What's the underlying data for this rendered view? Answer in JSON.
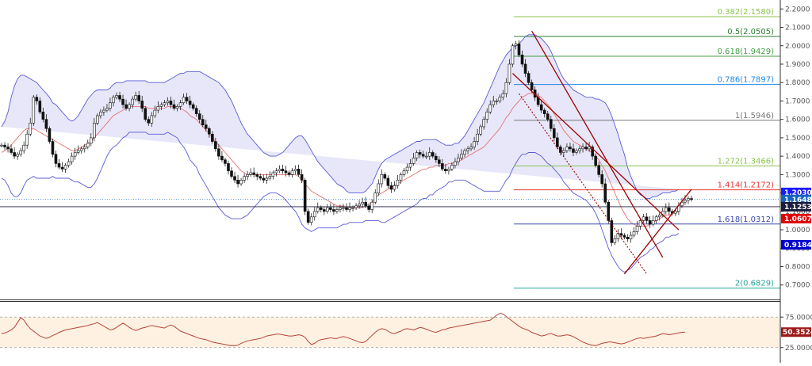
{
  "chart_data": {
    "type": "candlestick",
    "main": {
      "ylim": [
        0.63,
        2.24
      ],
      "y_ticks": [
        "2.2000",
        "2.1000",
        "2.0000",
        "1.9000",
        "1.8000",
        "1.7000",
        "1.6000",
        "1.5000",
        "1.4000",
        "1.3000",
        "1.2000",
        "1.1000",
        "1.0000",
        "0.9000",
        "0.8000",
        "0.7000"
      ],
      "grid": false,
      "fib_levels": [
        {
          "label": "0.382(2.1580)",
          "value": 2.158,
          "color": "#8bc34a"
        },
        {
          "label": "0.5(2.0505)",
          "value": 2.0505,
          "color": "#2e7d32"
        },
        {
          "label": "0.618(1.9429)",
          "value": 1.9429,
          "color": "#43a047"
        },
        {
          "label": "0.786(1.7897)",
          "value": 1.7897,
          "color": "#1e88e5"
        },
        {
          "label": "1(1.5946)",
          "value": 1.5946,
          "color": "#777777"
        },
        {
          "label": "1.272(1.3466)",
          "value": 1.3466,
          "color": "#8bc34a"
        },
        {
          "label": "1.414(1.2172)",
          "value": 1.2172,
          "color": "#e53935"
        },
        {
          "label": "1.618(1.0312)",
          "value": 1.0312,
          "color": "#3949ab"
        },
        {
          "label": "2(0.6829)",
          "value": 0.6829,
          "color": "#26a69a"
        }
      ],
      "price_tags": [
        {
          "label": "1.2030",
          "value": 1.203,
          "color": "#1a1aff"
        },
        {
          "label": "1.1648",
          "value": 1.1648,
          "color": "#1565c0"
        },
        {
          "label": "1.1253",
          "value": 1.1253,
          "color": "#1c1c3c"
        },
        {
          "label": "1.0607",
          "value": 1.0607,
          "color": "#e00000"
        },
        {
          "label": "0.9184",
          "value": 0.9184,
          "color": "#0000d0"
        }
      ],
      "horizontal_lines": [
        {
          "value": 1.1648,
          "color": "#1565c0",
          "style": "dotted"
        },
        {
          "value": 1.1253,
          "color": "#1c1c3c",
          "style": "solid"
        }
      ],
      "trend_lines": [
        {
          "x1": 166,
          "y1": 2.08,
          "x2": 207,
          "y2": 0.85,
          "color": "#9e0000",
          "style": "solid"
        },
        {
          "x1": 160,
          "y1": 1.85,
          "x2": 212,
          "y2": 1.0,
          "color": "#9e0000",
          "style": "solid"
        },
        {
          "x1": 162,
          "y1": 1.74,
          "x2": 202,
          "y2": 0.76,
          "color": "#9e0000",
          "style": "dotted"
        },
        {
          "x1": 195,
          "y1": 0.76,
          "x2": 216,
          "y2": 1.22,
          "color": "#9e0000",
          "style": "solid"
        }
      ],
      "x_count": 217,
      "close": [
        1.46,
        1.45,
        1.44,
        1.42,
        1.4,
        1.41,
        1.43,
        1.46,
        1.52,
        1.58,
        1.72,
        1.7,
        1.64,
        1.6,
        1.55,
        1.48,
        1.41,
        1.36,
        1.34,
        1.33,
        1.35,
        1.37,
        1.4,
        1.42,
        1.43,
        1.44,
        1.45,
        1.47,
        1.5,
        1.58,
        1.62,
        1.64,
        1.65,
        1.66,
        1.69,
        1.72,
        1.73,
        1.71,
        1.68,
        1.66,
        1.68,
        1.71,
        1.73,
        1.7,
        1.66,
        1.6,
        1.58,
        1.62,
        1.65,
        1.67,
        1.68,
        1.69,
        1.7,
        1.68,
        1.66,
        1.67,
        1.69,
        1.72,
        1.7,
        1.68,
        1.66,
        1.63,
        1.6,
        1.57,
        1.55,
        1.52,
        1.48,
        1.44,
        1.4,
        1.38,
        1.36,
        1.32,
        1.29,
        1.27,
        1.25,
        1.27,
        1.29,
        1.3,
        1.31,
        1.3,
        1.29,
        1.28,
        1.27,
        1.28,
        1.29,
        1.31,
        1.32,
        1.33,
        1.32,
        1.31,
        1.3,
        1.32,
        1.33,
        1.3,
        1.27,
        1.1,
        1.04,
        1.07,
        1.1,
        1.12,
        1.11,
        1.1,
        1.12,
        1.11,
        1.1,
        1.11,
        1.12,
        1.12,
        1.11,
        1.12,
        1.12,
        1.13,
        1.14,
        1.15,
        1.13,
        1.11,
        1.15,
        1.2,
        1.25,
        1.3,
        1.28,
        1.24,
        1.22,
        1.24,
        1.27,
        1.3,
        1.32,
        1.34,
        1.36,
        1.39,
        1.42,
        1.41,
        1.4,
        1.4,
        1.42,
        1.4,
        1.38,
        1.36,
        1.33,
        1.32,
        1.33,
        1.35,
        1.37,
        1.39,
        1.41,
        1.43,
        1.44,
        1.45,
        1.48,
        1.52,
        1.56,
        1.6,
        1.64,
        1.68,
        1.7,
        1.7,
        1.72,
        1.74,
        1.8,
        1.9,
        2.0,
        2.01,
        1.95,
        1.9,
        1.85,
        1.8,
        1.76,
        1.72,
        1.68,
        1.65,
        1.63,
        1.6,
        1.55,
        1.5,
        1.45,
        1.42,
        1.43,
        1.45,
        1.44,
        1.42,
        1.43,
        1.44,
        1.45,
        1.44,
        1.45,
        1.4,
        1.35,
        1.3,
        1.25,
        1.15,
        1.05,
        0.93,
        0.95,
        0.98,
        0.97,
        0.96,
        0.95,
        0.97,
        0.99,
        1.02,
        1.05,
        1.07,
        1.05,
        1.03,
        1.05,
        1.07,
        1.08,
        1.1,
        1.12,
        1.1,
        1.09,
        1.1,
        1.13,
        1.15,
        1.16,
        1.17,
        1.165
      ],
      "bb_middle": [
        1.42,
        1.43,
        1.44,
        1.46,
        1.48,
        1.5,
        1.52,
        1.54,
        1.55,
        1.55,
        1.55,
        1.54,
        1.53,
        1.52,
        1.51,
        1.5,
        1.49,
        1.48,
        1.47,
        1.46,
        1.45,
        1.44,
        1.43,
        1.43,
        1.44,
        1.45,
        1.46,
        1.47,
        1.48,
        1.5,
        1.52,
        1.54,
        1.56,
        1.58,
        1.6,
        1.62,
        1.63,
        1.64,
        1.65,
        1.66,
        1.67,
        1.67,
        1.67,
        1.67,
        1.67,
        1.67,
        1.66,
        1.66,
        1.66,
        1.66,
        1.66,
        1.66,
        1.67,
        1.67,
        1.67,
        1.67,
        1.66,
        1.65,
        1.64,
        1.62,
        1.61,
        1.6,
        1.58,
        1.56,
        1.54,
        1.52,
        1.5,
        1.48,
        1.46,
        1.44,
        1.42,
        1.4,
        1.38,
        1.36,
        1.34,
        1.32,
        1.31,
        1.3,
        1.3,
        1.3,
        1.3,
        1.3,
        1.3,
        1.3,
        1.3,
        1.3,
        1.3,
        1.3,
        1.3,
        1.3,
        1.3,
        1.3,
        1.3,
        1.29,
        1.27,
        1.25,
        1.23,
        1.21,
        1.2,
        1.19,
        1.18,
        1.17,
        1.16,
        1.15,
        1.14,
        1.13,
        1.13,
        1.13,
        1.12,
        1.12,
        1.12,
        1.12,
        1.12,
        1.12,
        1.13,
        1.14,
        1.15,
        1.17,
        1.19,
        1.2,
        1.21,
        1.22,
        1.23,
        1.24,
        1.25,
        1.26,
        1.27,
        1.28,
        1.29,
        1.3,
        1.31,
        1.32,
        1.33,
        1.33,
        1.34,
        1.34,
        1.35,
        1.35,
        1.35,
        1.35,
        1.36,
        1.36,
        1.37,
        1.37,
        1.38,
        1.39,
        1.4,
        1.41,
        1.42,
        1.43,
        1.44,
        1.45,
        1.47,
        1.49,
        1.51,
        1.53,
        1.55,
        1.58,
        1.61,
        1.63,
        1.66,
        1.68,
        1.7,
        1.72,
        1.73,
        1.74,
        1.74,
        1.74,
        1.73,
        1.72,
        1.7,
        1.68,
        1.66,
        1.63,
        1.6,
        1.57,
        1.54,
        1.52,
        1.5,
        1.48,
        1.47,
        1.46,
        1.45,
        1.44,
        1.43,
        1.42,
        1.4,
        1.38,
        1.35,
        1.32,
        1.28,
        1.24,
        1.2,
        1.16,
        1.12,
        1.09,
        1.06,
        1.04,
        1.03,
        1.02,
        1.02,
        1.02,
        1.02,
        1.03,
        1.04,
        1.05,
        1.06,
        1.07,
        1.08,
        1.08,
        1.09,
        1.09,
        1.1
      ],
      "bb_width": [
        0.14,
        0.16,
        0.2,
        0.26,
        0.3,
        0.32,
        0.32,
        0.3,
        0.28,
        0.27,
        0.26,
        0.26,
        0.25,
        0.24,
        0.23,
        0.22,
        0.2,
        0.2,
        0.19,
        0.18,
        0.17,
        0.16,
        0.16,
        0.17,
        0.18,
        0.2,
        0.22,
        0.24,
        0.25,
        0.25,
        0.24,
        0.22,
        0.2,
        0.18,
        0.17,
        0.17,
        0.17,
        0.16,
        0.15,
        0.15,
        0.14,
        0.14,
        0.14,
        0.14,
        0.14,
        0.14,
        0.14,
        0.14,
        0.14,
        0.14,
        0.14,
        0.14,
        0.14,
        0.15,
        0.16,
        0.17,
        0.19,
        0.2,
        0.22,
        0.24,
        0.25,
        0.26,
        0.28,
        0.29,
        0.3,
        0.31,
        0.32,
        0.33,
        0.34,
        0.34,
        0.34,
        0.33,
        0.32,
        0.3,
        0.28,
        0.26,
        0.24,
        0.22,
        0.2,
        0.18,
        0.16,
        0.14,
        0.12,
        0.11,
        0.1,
        0.1,
        0.1,
        0.11,
        0.12,
        0.14,
        0.16,
        0.18,
        0.2,
        0.22,
        0.24,
        0.24,
        0.23,
        0.22,
        0.2,
        0.18,
        0.17,
        0.16,
        0.15,
        0.14,
        0.13,
        0.12,
        0.11,
        0.1,
        0.09,
        0.08,
        0.08,
        0.08,
        0.08,
        0.08,
        0.08,
        0.09,
        0.1,
        0.12,
        0.14,
        0.16,
        0.17,
        0.17,
        0.17,
        0.17,
        0.17,
        0.17,
        0.17,
        0.17,
        0.17,
        0.17,
        0.17,
        0.16,
        0.16,
        0.16,
        0.15,
        0.15,
        0.14,
        0.13,
        0.12,
        0.11,
        0.1,
        0.1,
        0.1,
        0.1,
        0.11,
        0.12,
        0.14,
        0.16,
        0.18,
        0.2,
        0.22,
        0.24,
        0.26,
        0.28,
        0.3,
        0.32,
        0.34,
        0.34,
        0.34,
        0.34,
        0.33,
        0.32,
        0.31,
        0.31,
        0.32,
        0.32,
        0.32,
        0.32,
        0.32,
        0.32,
        0.32,
        0.32,
        0.31,
        0.3,
        0.29,
        0.28,
        0.28,
        0.28,
        0.28,
        0.28,
        0.28,
        0.28,
        0.28,
        0.28,
        0.29,
        0.3,
        0.31,
        0.33,
        0.35,
        0.37,
        0.38,
        0.38,
        0.37,
        0.36,
        0.34,
        0.32,
        0.28,
        0.25,
        0.22,
        0.19,
        0.17,
        0.16,
        0.15,
        0.14,
        0.14,
        0.13,
        0.13,
        0.13,
        0.12,
        0.12,
        0.12,
        0.12,
        0.12
      ]
    },
    "rsi": {
      "ylim": [
        0,
        100
      ],
      "y_ticks": [
        "75.0000",
        "25.0000"
      ],
      "upper": 75,
      "lower": 25,
      "value_tag": {
        "label": "50.3524",
        "color": "#9e1a1a"
      },
      "values": [
        48,
        49,
        51,
        54,
        58,
        66,
        74,
        70,
        62,
        56,
        52,
        48,
        44,
        42,
        40,
        42,
        45,
        47,
        50,
        52,
        54,
        55,
        56,
        57,
        58,
        59,
        60,
        61,
        63,
        64,
        66,
        63,
        60,
        57,
        54,
        55,
        58,
        62,
        65,
        62,
        58,
        55,
        53,
        55,
        57,
        58,
        60,
        61,
        60,
        59,
        58,
        57,
        60,
        62,
        60,
        56,
        52,
        50,
        48,
        46,
        44,
        42,
        40,
        39,
        38,
        36,
        34,
        33,
        32,
        31,
        30,
        29,
        28,
        28,
        29,
        32,
        34,
        36,
        37,
        38,
        39,
        40,
        42,
        44,
        45,
        46,
        47,
        47,
        46,
        45,
        44,
        44,
        45,
        46,
        45,
        42,
        35,
        30,
        32,
        36,
        38,
        39,
        40,
        41,
        40,
        40,
        42,
        43,
        42,
        40,
        38,
        36,
        34,
        33,
        35,
        40,
        45,
        50,
        54,
        56,
        55,
        52,
        49,
        48,
        50,
        52,
        55,
        56,
        55,
        54,
        56,
        58,
        57,
        55,
        53,
        51,
        50,
        52,
        54,
        55,
        57,
        58,
        59,
        60,
        61,
        62,
        63,
        64,
        65,
        66,
        67,
        68,
        69,
        70,
        74,
        78,
        81,
        80,
        76,
        72,
        68,
        64,
        60,
        57,
        55,
        53,
        50,
        48,
        46,
        44,
        45,
        47,
        48,
        46,
        44,
        44,
        45,
        46,
        45,
        43,
        40,
        37,
        34,
        32,
        30,
        29,
        28,
        30,
        32,
        33,
        34,
        34,
        33,
        32,
        31,
        32,
        34,
        36,
        38,
        40,
        41,
        40,
        41,
        42,
        43,
        44,
        46,
        48,
        47,
        46,
        47,
        48,
        49,
        50,
        50.35
      ]
    }
  }
}
